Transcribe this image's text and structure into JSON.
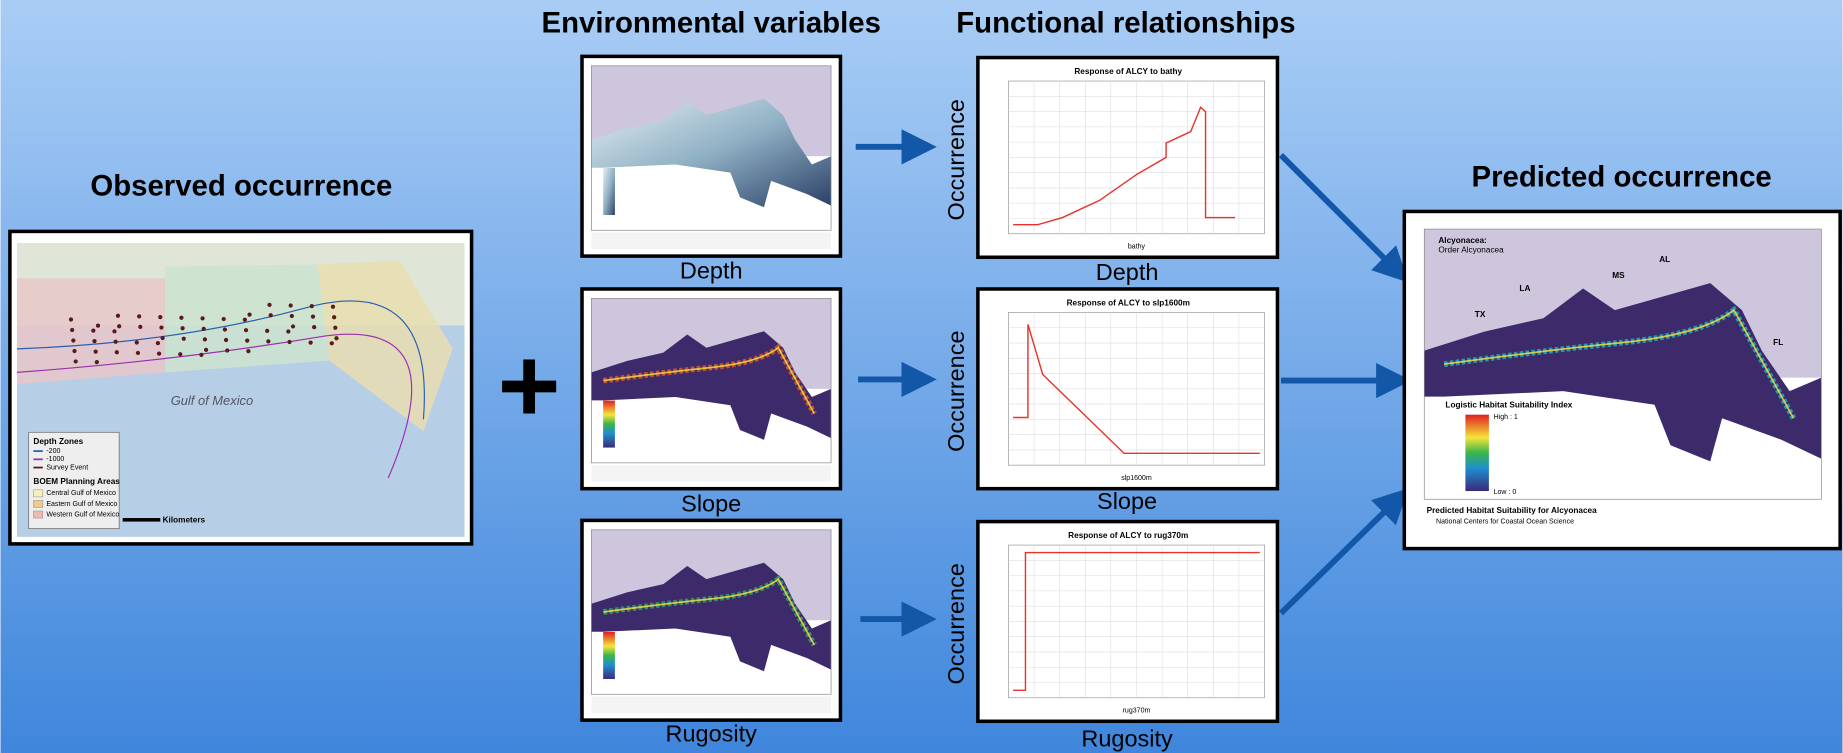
{
  "headers": {
    "observed": "Observed occurrence",
    "environmental": "Environmental variables",
    "functional": "Functional relationships",
    "predicted": "Predicted occurrence"
  },
  "observed_map": {
    "legend_title": "Depth Zones",
    "depth_items": [
      "-200",
      "-1000",
      "Survey Event"
    ],
    "areas_title": "BOEM Planning Areas",
    "areas": [
      "Central Gulf of Mexico",
      "Eastern Gulf of Mexico",
      "Western Gulf of Mexico"
    ],
    "scale_unit": "Kilometers",
    "sea": "Gulf of Mexico"
  },
  "environmental": [
    {
      "label": "Depth"
    },
    {
      "label": "Slope"
    },
    {
      "label": "Rugosity"
    }
  ],
  "functional": [
    {
      "title": "Response of ALCY to bathy",
      "x_label": "bathy",
      "y_label": "Occurrence",
      "label": "Depth"
    },
    {
      "title": "Response of ALCY to slp1600m",
      "x_label": "slp1600m",
      "y_label": "Occurrence",
      "label": "Slope"
    },
    {
      "title": "Response of ALCY to rug370m",
      "x_label": "rug370m",
      "y_label": "Occurrence",
      "label": "Rugosity"
    }
  ],
  "predicted_map": {
    "title": "Alcyonacea:",
    "subtitle": "Order Alcyonacea",
    "states": [
      "TX",
      "LA",
      "MS",
      "AL",
      "FL"
    ],
    "legend_title": "Logistic Habitat Suitability Index",
    "legend_high": "High : 1",
    "legend_low": "Low : 0",
    "caption": "Predicted Habitat Suitability for Alcyonacea",
    "credit": "National Centers for Coastal Ocean Science"
  }
}
